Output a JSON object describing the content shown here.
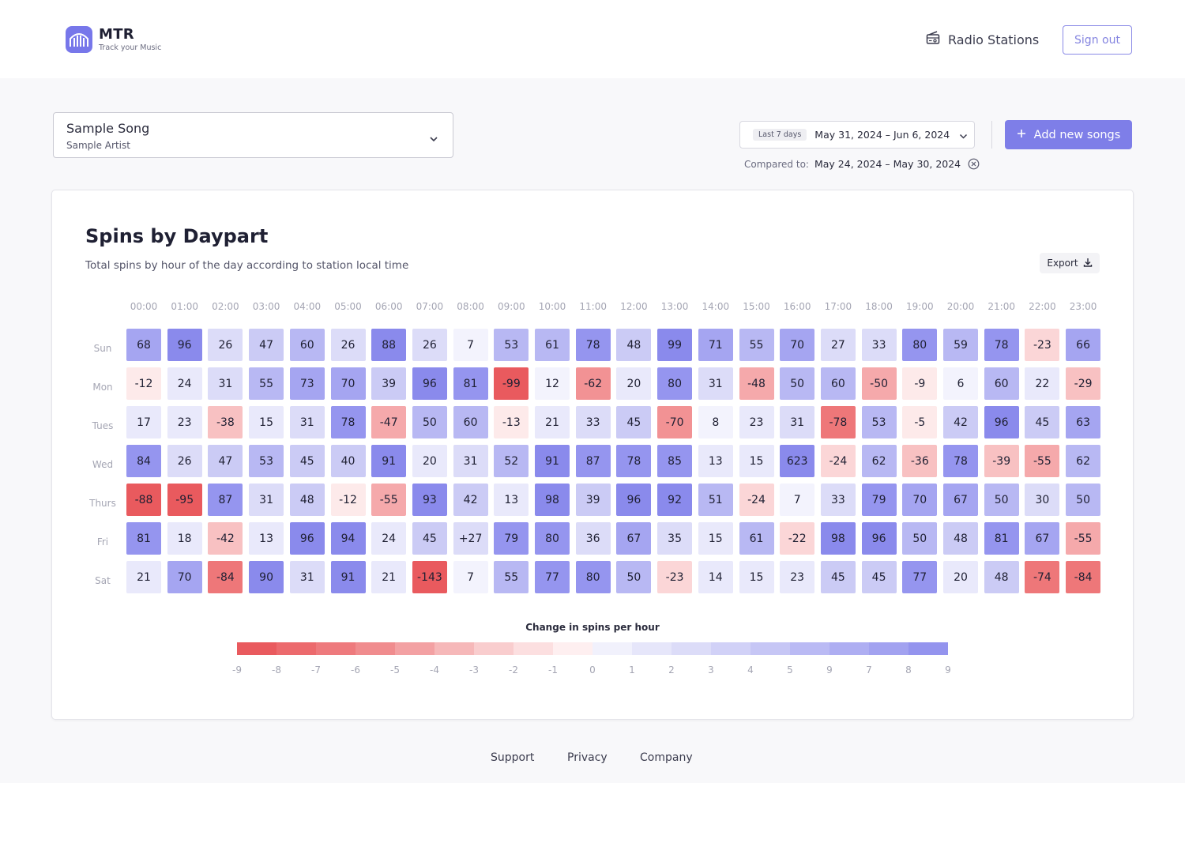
{
  "header": {
    "brand": "MTR",
    "tagline": "Track your Music",
    "radio_label": "Radio Stations",
    "signout_label": "Sign out"
  },
  "song": {
    "title": "Sample Song",
    "artist": "Sample Artist"
  },
  "date_range": {
    "preset": "Last 7 days",
    "range": "May 31, 2024  –  Jun 6, 2024",
    "add_label": "Add new songs",
    "compared_label": "Compared to:",
    "compared_range": "May 24, 2024   –   May 30, 2024"
  },
  "card": {
    "title": "Spins by Daypart",
    "subtitle": "Total spins by hour of the day according to station local time",
    "export_label": "Export"
  },
  "chart_data": {
    "type": "heatmap",
    "x": [
      "00:00",
      "01:00",
      "02:00",
      "03:00",
      "04:00",
      "05:00",
      "06:00",
      "07:00",
      "08:00",
      "09:00",
      "10:00",
      "11:00",
      "12:00",
      "13:00",
      "14:00",
      "15:00",
      "16:00",
      "17:00",
      "18:00",
      "19:00",
      "20:00",
      "21:00",
      "22:00",
      "23:00"
    ],
    "y": [
      "Sun",
      "Mon",
      "Tues",
      "Wed",
      "Thurs",
      "Fri",
      "Sat"
    ],
    "values": [
      [
        "68",
        "96",
        "26",
        "47",
        "60",
        "26",
        "88",
        "26",
        "7",
        "53",
        "61",
        "78",
        "48",
        "99",
        "71",
        "55",
        "70",
        "27",
        "33",
        "80",
        "59",
        "78",
        "-23",
        "66"
      ],
      [
        "-12",
        "24",
        "31",
        "55",
        "73",
        "70",
        "39",
        "96",
        "81",
        "-99",
        "12",
        "-62",
        "20",
        "80",
        "31",
        "-48",
        "50",
        "60",
        "-50",
        "-9",
        "6",
        "60",
        "22",
        "-29"
      ],
      [
        "17",
        "23",
        "-38",
        "15",
        "31",
        "78",
        "-47",
        "50",
        "60",
        "-13",
        "21",
        "33",
        "45",
        "-70",
        "8",
        "23",
        "31",
        "-78",
        "53",
        "-5",
        "42",
        "96",
        "45",
        "63"
      ],
      [
        "84",
        "26",
        "47",
        "53",
        "45",
        "40",
        "91",
        "20",
        "31",
        "52",
        "91",
        "87",
        "78",
        "85",
        "13",
        "15",
        "623",
        "-24",
        "62",
        "-36",
        "78",
        "-39",
        "-55",
        "62"
      ],
      [
        "-88",
        "-95",
        "87",
        "31",
        "48",
        "-12",
        "-55",
        "93",
        "42",
        "13",
        "98",
        "39",
        "96",
        "92",
        "51",
        "-24",
        "7",
        "33",
        "79",
        "70",
        "67",
        "50",
        "30",
        "50"
      ],
      [
        "81",
        "18",
        "-42",
        "13",
        "96",
        "94",
        "24",
        "45",
        "+27",
        "79",
        "80",
        "36",
        "67",
        "35",
        "15",
        "61",
        "-22",
        "98",
        "96",
        "50",
        "48",
        "81",
        "67",
        "-55"
      ],
      [
        "21",
        "70",
        "-84",
        "90",
        "31",
        "91",
        "21",
        "-143",
        "7",
        "55",
        "77",
        "80",
        "50",
        "-23",
        "14",
        "15",
        "23",
        "45",
        "45",
        "77",
        "20",
        "48",
        "-74",
        "-84"
      ]
    ],
    "legend": {
      "title": "Change in spins per hour",
      "ticks": [
        "-9",
        "-8",
        "-7",
        "-6",
        "-5",
        "-4",
        "-3",
        "-2",
        "-1",
        "0",
        "1",
        "2",
        "3",
        "4",
        "5",
        "9",
        "7",
        "8",
        "9"
      ],
      "colors": [
        "#e95a5e",
        "#ec6a6d",
        "#ee7a7d",
        "#f08c8e",
        "#f3a1a3",
        "#f6b8b9",
        "#f9cdce",
        "#fcdfe0",
        "#feeff0",
        "#f1f1fc",
        "#e6e6fa",
        "#dcdcf8",
        "#d1d1f7",
        "#c6c6f5",
        "#babaf4",
        "#aeaef2",
        "#a2a2f0",
        "#9494ee"
      ]
    }
  },
  "colors": {
    "accent": "#7e7ee8",
    "positive_max": "#8a8aec",
    "negative_max": "#e95a5e"
  },
  "footer": {
    "links": [
      "Support",
      "Privacy",
      "Company"
    ]
  }
}
